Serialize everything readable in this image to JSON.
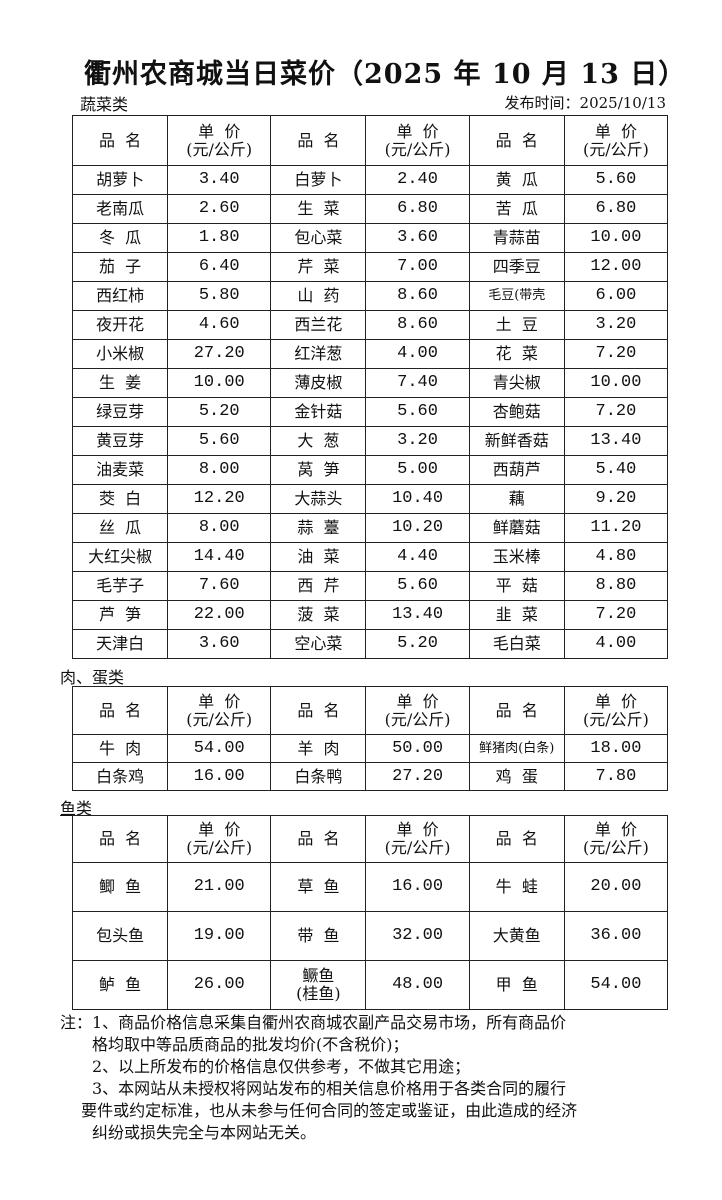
{
  "title": "衢州农商城当日菜价（2025 年 10 月 13 日）",
  "publish_time": "发布时间：2025/10/13",
  "header": {
    "name": "品  名",
    "price_line1": "单  价",
    "price_line2": "(元/公斤)"
  },
  "vegetables": {
    "label": "蔬菜类",
    "rows": [
      [
        [
          "胡萝卜",
          "3.40"
        ],
        [
          "白萝卜",
          "2.40"
        ],
        [
          "黄  瓜",
          "5.60"
        ]
      ],
      [
        [
          "老南瓜",
          "2.60"
        ],
        [
          "生  菜",
          "6.80"
        ],
        [
          "苦  瓜",
          "6.80"
        ]
      ],
      [
        [
          "冬  瓜",
          "1.80"
        ],
        [
          "包心菜",
          "3.60"
        ],
        [
          "青蒜苗",
          "10.00"
        ]
      ],
      [
        [
          "茄  子",
          "6.40"
        ],
        [
          "芹  菜",
          "7.00"
        ],
        [
          "四季豆",
          "12.00"
        ]
      ],
      [
        [
          "西红柿",
          "5.80"
        ],
        [
          "山  药",
          "8.60"
        ],
        [
          "毛豆(带壳",
          "6.00"
        ]
      ],
      [
        [
          "夜开花",
          "4.60"
        ],
        [
          "西兰花",
          "8.60"
        ],
        [
          "土  豆",
          "3.20"
        ]
      ],
      [
        [
          "小米椒",
          "27.20"
        ],
        [
          "红洋葱",
          "4.00"
        ],
        [
          "花  菜",
          "7.20"
        ]
      ],
      [
        [
          "生  姜",
          "10.00"
        ],
        [
          "薄皮椒",
          "7.40"
        ],
        [
          "青尖椒",
          "10.00"
        ]
      ],
      [
        [
          "绿豆芽",
          "5.20"
        ],
        [
          "金针菇",
          "5.60"
        ],
        [
          "杏鲍菇",
          "7.20"
        ]
      ],
      [
        [
          "黄豆芽",
          "5.60"
        ],
        [
          "大  葱",
          "3.20"
        ],
        [
          "新鲜香菇",
          "13.40"
        ]
      ],
      [
        [
          "油麦菜",
          "8.00"
        ],
        [
          "莴  笋",
          "5.00"
        ],
        [
          "西葫芦",
          "5.40"
        ]
      ],
      [
        [
          "茭  白",
          "12.20"
        ],
        [
          "大蒜头",
          "10.40"
        ],
        [
          "藕",
          "9.20"
        ]
      ],
      [
        [
          "丝  瓜",
          "8.00"
        ],
        [
          "蒜  薹",
          "10.20"
        ],
        [
          "鲜蘑菇",
          "11.20"
        ]
      ],
      [
        [
          "大红尖椒",
          "14.40"
        ],
        [
          "油  菜",
          "4.40"
        ],
        [
          "玉米棒",
          "4.80"
        ]
      ],
      [
        [
          "毛芋子",
          "7.60"
        ],
        [
          "西  芹",
          "5.60"
        ],
        [
          "平  菇",
          "8.80"
        ]
      ],
      [
        [
          "芦  笋",
          "22.00"
        ],
        [
          "菠  菜",
          "13.40"
        ],
        [
          "韭  菜",
          "7.20"
        ]
      ],
      [
        [
          "天津白",
          "3.60"
        ],
        [
          "空心菜",
          "5.20"
        ],
        [
          "毛白菜",
          "4.00"
        ]
      ]
    ]
  },
  "meat_eggs": {
    "label": "肉、蛋类",
    "rows": [
      [
        [
          "牛  肉",
          "54.00"
        ],
        [
          "羊  肉",
          "50.00"
        ],
        [
          "鲜猪肉(白条)",
          "18.00"
        ]
      ],
      [
        [
          "白条鸡",
          "16.00"
        ],
        [
          "白条鸭",
          "27.20"
        ],
        [
          "鸡  蛋",
          "7.80"
        ]
      ]
    ]
  },
  "fish": {
    "label": "鱼类",
    "rows": [
      [
        [
          "鲫  鱼",
          "21.00"
        ],
        [
          "草  鱼",
          "16.00"
        ],
        [
          "牛  蛙",
          "20.00"
        ]
      ],
      [
        [
          "包头鱼",
          "19.00"
        ],
        [
          "带  鱼",
          "32.00"
        ],
        [
          "大黄鱼",
          "36.00"
        ]
      ],
      [
        [
          "鲈  鱼",
          "26.00"
        ],
        [
          "鳜鱼\n(桂鱼)",
          "48.00"
        ],
        [
          "甲  鱼",
          "54.00"
        ]
      ]
    ]
  },
  "notes": [
    "注：1、商品价格信息采集自衢州农商城农副产品交易市场，所有商品价",
    "　　格均取中等品质商品的批发均价(不含税价)；",
    "　　2、以上所发布的价格信息仅供参考，不做其它用途；",
    "　　3、本网站从未授权将网站发布的相关信息价格用于各类合同的履行",
    "　 要件或约定标准，也从未参与任何合同的签定或鉴证，由此造成的经济",
    "　　纠纷或损失完全与本网站无关。"
  ]
}
